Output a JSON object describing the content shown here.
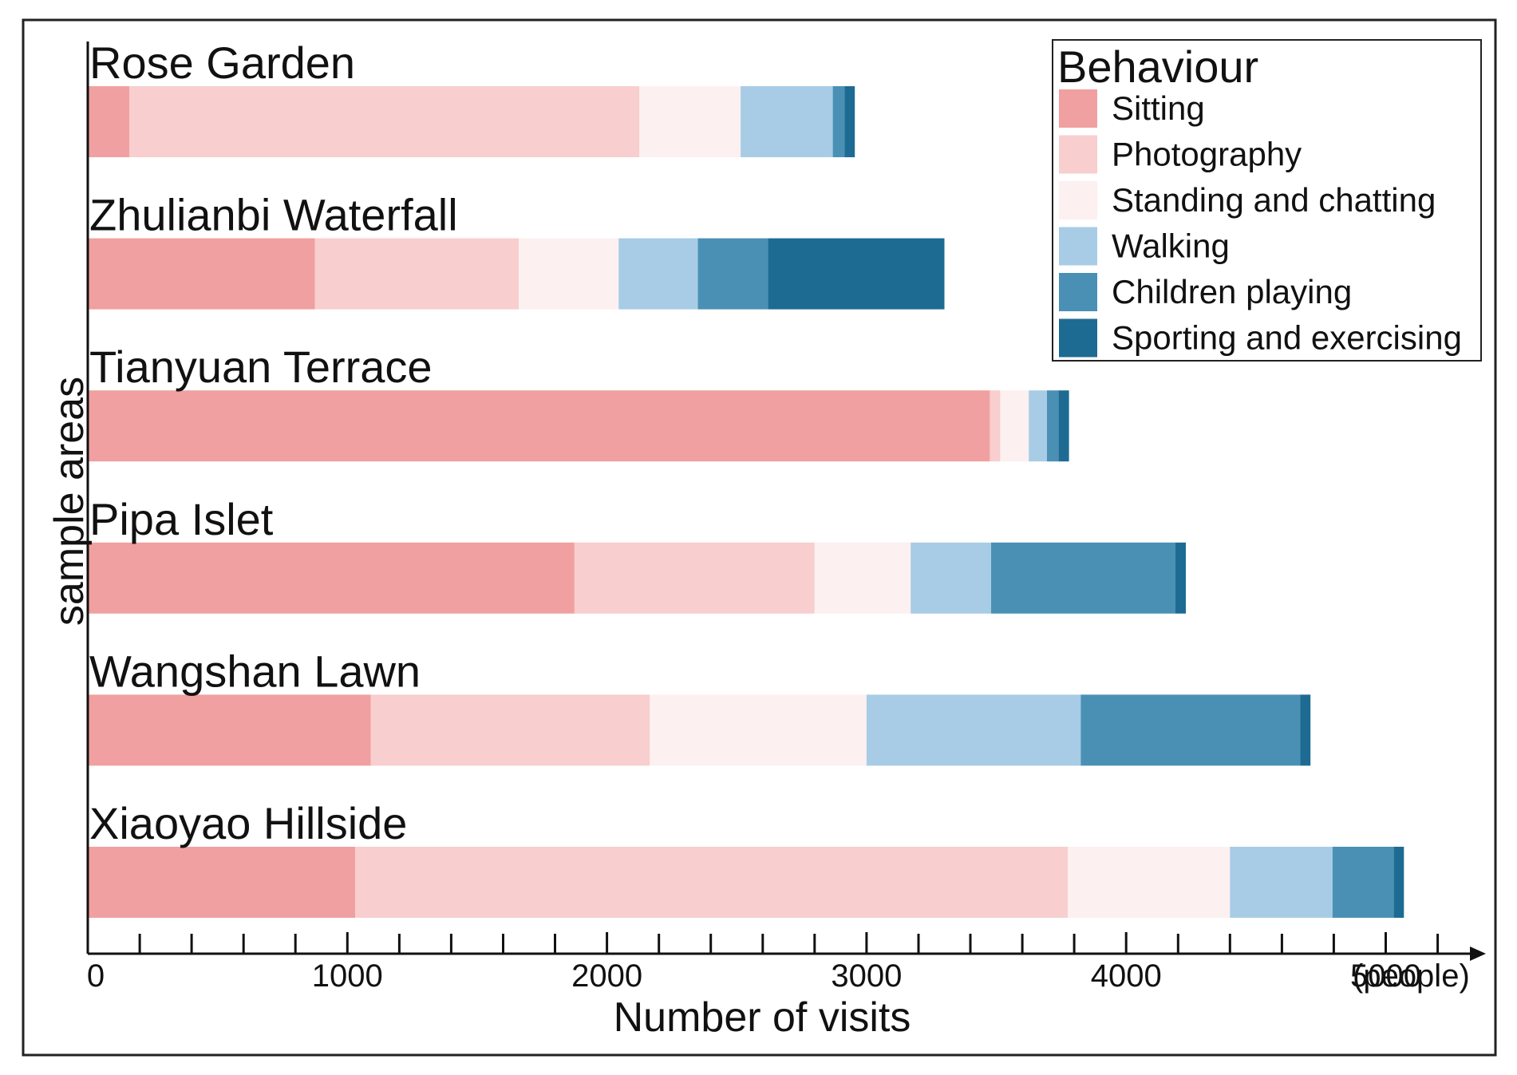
{
  "chart_data": {
    "type": "bar",
    "orientation": "horizontal",
    "stacked": true,
    "title": "",
    "xlabel": "Number of visits",
    "xunit": "(people)",
    "ylabel": "sample areas",
    "xlim": [
      0,
      5400
    ],
    "xticks_labeled": [
      0,
      1000,
      2000,
      3000,
      4000,
      5000
    ],
    "xticks_minor_step": 200,
    "grid": false,
    "legend": {
      "title": "Behaviour",
      "position": "top-right"
    },
    "categories": [
      "Rose Garden",
      "Zhulianbi Waterfall",
      "Tianyuan Terrace",
      "Pipa Islet",
      "Wangshan Lawn",
      "Xiaoyao Hillside"
    ],
    "series": [
      {
        "name": "Sitting",
        "color": "#f0a0a0",
        "values": [
          160,
          875,
          3475,
          1875,
          1090,
          1030
        ]
      },
      {
        "name": "Photography",
        "color": "#f8cece",
        "values": [
          1965,
          785,
          40,
          925,
          1075,
          2745
        ]
      },
      {
        "name": "Standing and chatting",
        "color": "#fcf0f0",
        "values": [
          390,
          385,
          110,
          370,
          835,
          625
        ]
      },
      {
        "name": "Walking",
        "color": "#a8cce6",
        "values": [
          355,
          305,
          70,
          310,
          825,
          395
        ]
      },
      {
        "name": "Children playing",
        "color": "#4a90b5",
        "values": [
          45,
          270,
          45,
          710,
          845,
          235
        ]
      },
      {
        "name": "Sporting and exercising",
        "color": "#1d6b93",
        "values": [
          40,
          680,
          40,
          40,
          40,
          40
        ]
      }
    ]
  }
}
